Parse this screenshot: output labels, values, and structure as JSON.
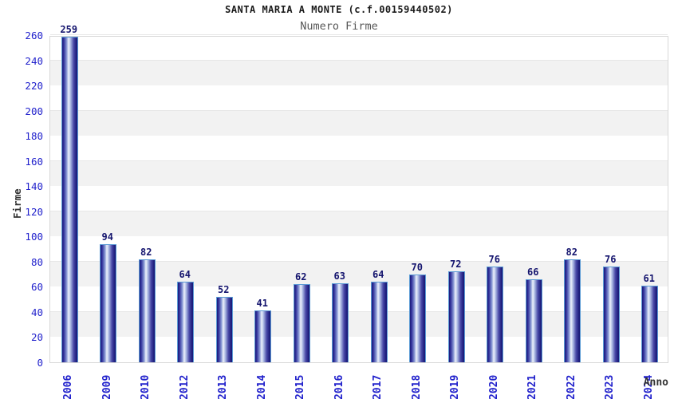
{
  "header": {
    "title": "SANTA MARIA A MONTE (c.f.00159440502)",
    "subtitle": "Numero Firme"
  },
  "chart_data": {
    "type": "bar",
    "title": "SANTA MARIA A MONTE (c.f.00159440502)",
    "subtitle": "Numero Firme",
    "xlabel": "Anno",
    "ylabel": "Firme",
    "categories": [
      "2006",
      "2009",
      "2010",
      "2012",
      "2013",
      "2014",
      "2015",
      "2016",
      "2017",
      "2018",
      "2019",
      "2020",
      "2021",
      "2022",
      "2023",
      "2024"
    ],
    "values": [
      259,
      94,
      82,
      64,
      52,
      41,
      62,
      63,
      64,
      70,
      72,
      76,
      66,
      82,
      76,
      61
    ],
    "ylim": [
      0,
      260
    ],
    "ytick_step": 20,
    "grid": "alternating horizontal gray bands every 20 units",
    "legend": "none",
    "bar_value_labels": true,
    "x_tick_rotation": -90,
    "colors": {
      "bar_edge": "#5b9bd5",
      "bar_dark": "#1b1b7a",
      "bar_light": "#eef2fc",
      "tick_label": "#2222cc",
      "value_label": "#14146e",
      "band_gray": "#f2f2f2",
      "plot_border": "#d8d8d8",
      "title": "#1a1a1a",
      "subtitle": "#565656",
      "axis_title": "#333333"
    }
  }
}
